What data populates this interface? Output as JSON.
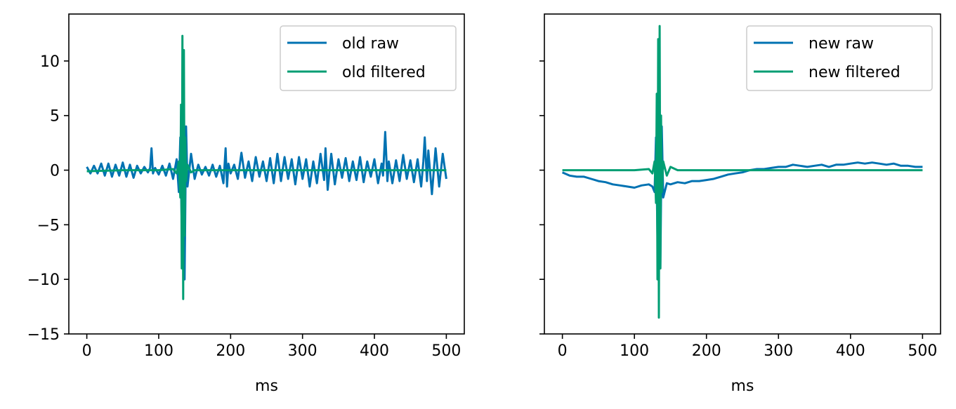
{
  "chart_data": [
    {
      "type": "line",
      "title": "",
      "xlabel": "ms",
      "ylabel": "",
      "xlim": [
        -25,
        525
      ],
      "ylim": [
        -15,
        14.3
      ],
      "xticks": [
        0,
        100,
        200,
        300,
        400,
        500
      ],
      "yticks": [
        -15,
        -10,
        -5,
        0,
        5,
        10
      ],
      "y_tick_labels_shown": true,
      "legend": "top-right",
      "series": [
        {
          "name": "old raw",
          "color": "#0072b2",
          "x": [
            0,
            5,
            10,
            15,
            20,
            25,
            30,
            35,
            40,
            45,
            50,
            55,
            60,
            65,
            70,
            75,
            80,
            85,
            88,
            90,
            92,
            95,
            100,
            105,
            110,
            115,
            120,
            125,
            128,
            130,
            132,
            134,
            136,
            138,
            140,
            145,
            150,
            155,
            160,
            165,
            170,
            175,
            180,
            185,
            190,
            193,
            195,
            197,
            200,
            205,
            210,
            215,
            220,
            225,
            230,
            235,
            240,
            245,
            250,
            255,
            260,
            265,
            270,
            275,
            280,
            285,
            290,
            295,
            300,
            305,
            310,
            315,
            320,
            325,
            330,
            332,
            335,
            340,
            345,
            350,
            355,
            360,
            365,
            370,
            375,
            380,
            385,
            390,
            395,
            400,
            405,
            410,
            412,
            415,
            418,
            420,
            425,
            430,
            435,
            440,
            445,
            450,
            455,
            460,
            465,
            468,
            470,
            473,
            475,
            480,
            485,
            490,
            495,
            500
          ],
          "y": [
            0.3,
            -0.3,
            0.4,
            -0.3,
            0.6,
            -0.5,
            0.6,
            -0.6,
            0.5,
            -0.5,
            0.7,
            -0.6,
            0.5,
            -0.7,
            0.4,
            -0.3,
            0.3,
            -0.2,
            0.2,
            2.0,
            -0.3,
            0.2,
            -0.4,
            0.4,
            -0.5,
            0.6,
            -0.8,
            1.0,
            -2.0,
            3.0,
            -5.0,
            11.0,
            -10.0,
            4.0,
            -1.5,
            1.5,
            -0.8,
            0.5,
            -0.4,
            0.3,
            -0.5,
            0.5,
            -0.6,
            0.4,
            -1.2,
            2.0,
            -1.5,
            0.6,
            -0.3,
            0.5,
            -0.8,
            1.6,
            -0.7,
            0.8,
            -1.0,
            1.2,
            -0.6,
            0.8,
            -1.0,
            1.1,
            -1.2,
            1.5,
            -1.0,
            1.2,
            -0.8,
            1.0,
            -1.3,
            1.2,
            -0.8,
            1.0,
            -1.5,
            0.8,
            -1.2,
            1.5,
            -0.9,
            2.0,
            -1.8,
            1.5,
            -1.3,
            1.0,
            -0.7,
            1.1,
            -1.0,
            0.8,
            -0.9,
            1.2,
            -1.1,
            0.8,
            -0.6,
            1.0,
            -1.2,
            0.6,
            -0.5,
            3.5,
            -1.0,
            0.8,
            -1.2,
            0.9,
            -1.0,
            1.4,
            -0.8,
            0.9,
            -1.1,
            1.0,
            -1.5,
            0.8,
            3.0,
            -1.0,
            1.8,
            -2.2,
            2.0,
            -1.5,
            1.5,
            -0.8
          ]
        },
        {
          "name": "old filtered",
          "color": "#009e73",
          "x": [
            0,
            50,
            100,
            120,
            125,
            128,
            130,
            131,
            132,
            133,
            134,
            135,
            136,
            137,
            138,
            140,
            145,
            150,
            200,
            300,
            400,
            500
          ],
          "y": [
            -0.1,
            0.0,
            0.0,
            0.1,
            -0.3,
            0.8,
            -2.5,
            6.0,
            -9.0,
            12.3,
            -11.8,
            11.0,
            -6.0,
            3.0,
            -1.0,
            0.5,
            -0.2,
            0.0,
            0.0,
            0.0,
            0.0,
            0.0
          ]
        }
      ]
    },
    {
      "type": "line",
      "title": "",
      "xlabel": "ms",
      "ylabel": "",
      "xlim": [
        -25,
        525
      ],
      "ylim": [
        -15,
        14.3
      ],
      "xticks": [
        0,
        100,
        200,
        300,
        400,
        500
      ],
      "yticks": [
        -15,
        -10,
        -5,
        0,
        5,
        10
      ],
      "y_tick_labels_shown": false,
      "legend": "top-right",
      "series": [
        {
          "name": "new raw",
          "color": "#0072b2",
          "x": [
            0,
            10,
            20,
            30,
            40,
            50,
            60,
            70,
            80,
            90,
            100,
            110,
            120,
            125,
            128,
            130,
            132,
            134,
            136,
            138,
            140,
            145,
            150,
            160,
            170,
            180,
            190,
            200,
            210,
            220,
            230,
            240,
            250,
            260,
            270,
            280,
            290,
            300,
            310,
            320,
            330,
            340,
            350,
            360,
            370,
            380,
            390,
            400,
            410,
            420,
            430,
            440,
            450,
            460,
            470,
            480,
            490,
            500
          ],
          "y": [
            -0.2,
            -0.5,
            -0.6,
            -0.6,
            -0.8,
            -1.0,
            -1.1,
            -1.3,
            -1.4,
            -1.5,
            -1.6,
            -1.4,
            -1.3,
            -1.5,
            -2.0,
            3.0,
            -6.0,
            10.0,
            -9.0,
            4.0,
            -2.5,
            -1.2,
            -1.3,
            -1.1,
            -1.2,
            -1.0,
            -1.0,
            -0.9,
            -0.8,
            -0.6,
            -0.4,
            -0.3,
            -0.2,
            0.0,
            0.1,
            0.1,
            0.2,
            0.3,
            0.3,
            0.5,
            0.4,
            0.3,
            0.4,
            0.5,
            0.3,
            0.5,
            0.5,
            0.6,
            0.7,
            0.6,
            0.7,
            0.6,
            0.5,
            0.6,
            0.4,
            0.4,
            0.3,
            0.3
          ]
        },
        {
          "name": "new filtered",
          "color": "#009e73",
          "x": [
            0,
            50,
            100,
            120,
            125,
            128,
            130,
            131,
            132,
            133,
            134,
            135,
            136,
            137,
            138,
            140,
            145,
            150,
            160,
            200,
            300,
            400,
            500
          ],
          "y": [
            0.0,
            0.0,
            0.0,
            0.1,
            -0.3,
            0.8,
            -3.0,
            7.0,
            -10.0,
            12.0,
            -13.5,
            13.2,
            -9.0,
            5.0,
            -2.0,
            0.8,
            -0.5,
            0.3,
            0.0,
            0.0,
            0.0,
            0.0,
            0.0
          ]
        }
      ]
    }
  ]
}
